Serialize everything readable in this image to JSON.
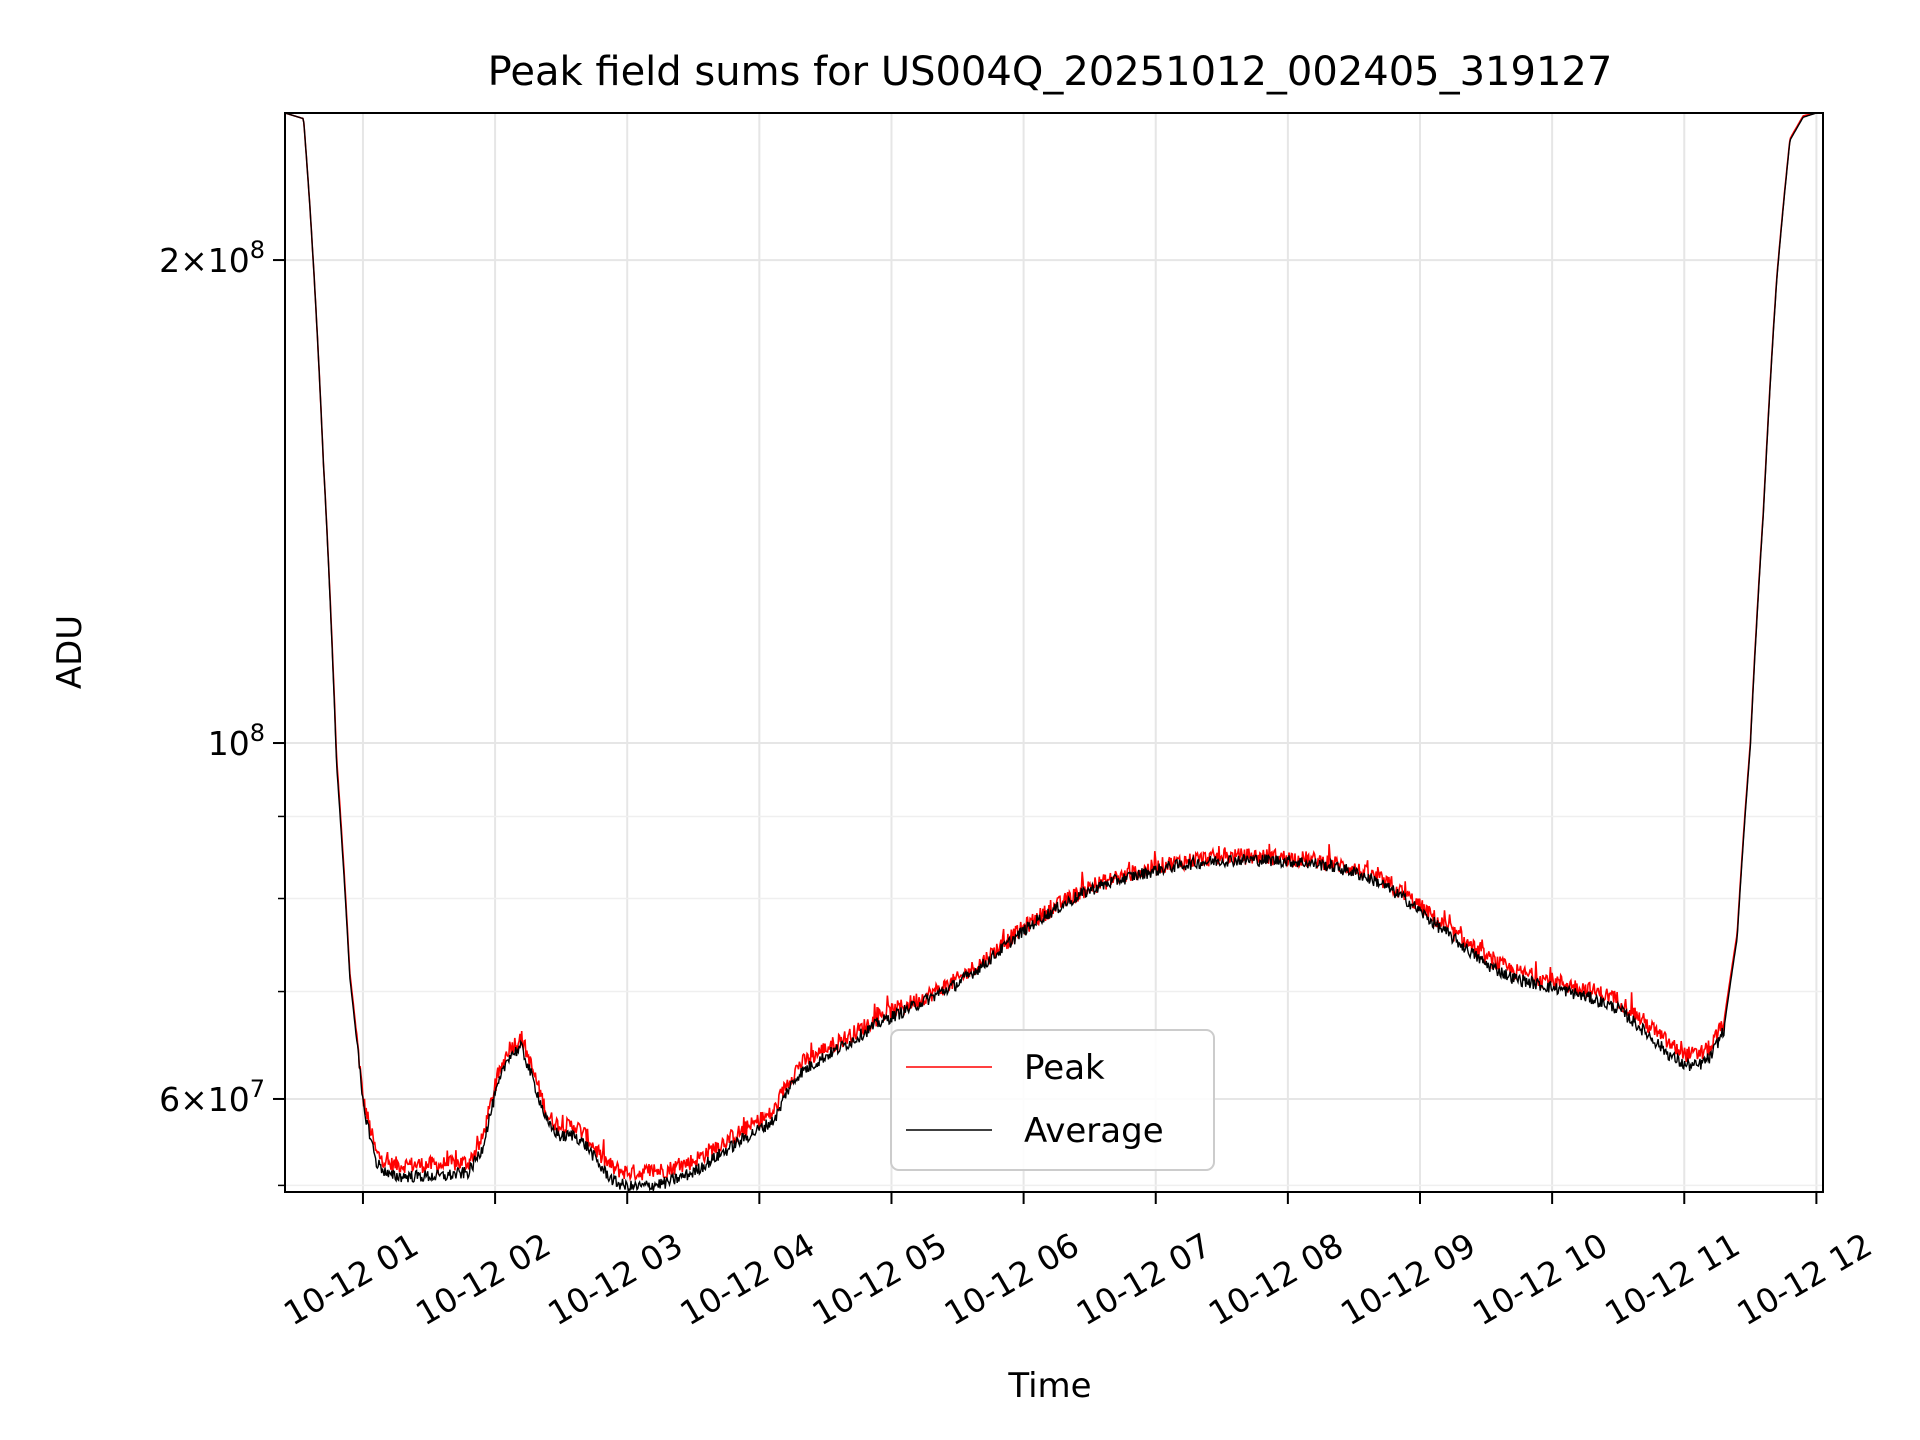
{
  "chart_data": {
    "type": "line",
    "title": "Peak field sums for US004Q_20251012_002405_319127",
    "xlabel": "Time",
    "ylabel": "ADU",
    "x_unit": "hours since 2025-10-12 00:00",
    "xlim": [
      0.41,
      12.05
    ],
    "ylim": [
      52500000,
      247000000
    ],
    "yscale": "log",
    "grid": true,
    "legend_position": "lower-center",
    "x_ticks": [
      {
        "value": 1,
        "label": "10-12 01"
      },
      {
        "value": 2,
        "label": "10-12 02"
      },
      {
        "value": 3,
        "label": "10-12 03"
      },
      {
        "value": 4,
        "label": "10-12 04"
      },
      {
        "value": 5,
        "label": "10-12 05"
      },
      {
        "value": 6,
        "label": "10-12 06"
      },
      {
        "value": 7,
        "label": "10-12 07"
      },
      {
        "value": 8,
        "label": "10-12 08"
      },
      {
        "value": 9,
        "label": "10-12 09"
      },
      {
        "value": 10,
        "label": "10-12 10"
      },
      {
        "value": 11,
        "label": "10-12 11"
      },
      {
        "value": 12,
        "label": "10-12 12"
      }
    ],
    "y_ticks": [
      {
        "value": 200000000,
        "base": "2",
        "exp": "8"
      },
      {
        "value": 100000000,
        "base": "",
        "exp": "8"
      },
      {
        "value": 60000000,
        "base": "6",
        "exp": "7"
      }
    ],
    "y_minor_ticks": [
      53000000,
      70000000,
      80000000,
      90000000
    ],
    "series": [
      {
        "name": "Peak",
        "color": "#ff0000",
        "x": [
          0.41,
          0.55,
          0.6,
          0.7,
          0.8,
          0.9,
          1.0,
          1.1,
          1.2,
          1.4,
          1.6,
          1.8,
          1.9,
          2.0,
          2.1,
          2.2,
          2.3,
          2.4,
          2.5,
          2.6,
          2.7,
          2.8,
          2.9,
          3.0,
          3.1,
          3.3,
          3.5,
          3.7,
          3.9,
          4.1,
          4.15,
          4.2,
          4.3,
          4.5,
          4.7,
          4.9,
          5.1,
          5.3,
          5.5,
          5.7,
          5.9,
          6.1,
          6.3,
          6.5,
          6.7,
          6.9,
          7.1,
          7.3,
          7.5,
          7.7,
          7.9,
          8.1,
          8.3,
          8.5,
          8.7,
          8.9,
          9.1,
          9.3,
          9.5,
          9.7,
          9.9,
          10.1,
          10.3,
          10.5,
          10.7,
          10.9,
          11.0,
          11.1,
          11.2,
          11.3,
          11.4,
          11.5,
          11.6,
          11.7,
          11.8,
          11.9,
          12.0
        ],
        "values": [
          247000000,
          245000000,
          215000000,
          150000000,
          98000000,
          72000000,
          60000000,
          55500000,
          54600000,
          54600000,
          54600000,
          54800000,
          56500000,
          61000000,
          64500000,
          65500000,
          62000000,
          58500000,
          57600000,
          57800000,
          56800000,
          55200000,
          54300000,
          54000000,
          54000000,
          54200000,
          54900000,
          56200000,
          57500000,
          58800000,
          59800000,
          61200000,
          63000000,
          64500000,
          65800000,
          67500000,
          68600000,
          69800000,
          71200000,
          73200000,
          75600000,
          77800000,
          79600000,
          81300000,
          82400000,
          83300000,
          84100000,
          84600000,
          84900000,
          85000000,
          84900000,
          84700000,
          84300000,
          83500000,
          82200000,
          80300000,
          77900000,
          75600000,
          73500000,
          72100000,
          71400000,
          70800000,
          70100000,
          69200000,
          67000000,
          64800000,
          64000000,
          63900000,
          64600000,
          67000000,
          76000000,
          100000000,
          140000000,
          195000000,
          238000000,
          246000000,
          247000000
        ]
      },
      {
        "name": "Average",
        "color": "#000000",
        "x": [
          0.41,
          0.55,
          0.6,
          0.7,
          0.8,
          0.9,
          1.0,
          1.1,
          1.2,
          1.4,
          1.6,
          1.8,
          1.9,
          2.0,
          2.1,
          2.2,
          2.3,
          2.4,
          2.5,
          2.6,
          2.7,
          2.8,
          2.9,
          3.0,
          3.1,
          3.3,
          3.5,
          3.7,
          3.9,
          4.1,
          4.15,
          4.2,
          4.3,
          4.5,
          4.7,
          4.9,
          5.1,
          5.3,
          5.5,
          5.7,
          5.9,
          6.1,
          6.3,
          6.5,
          6.7,
          6.9,
          7.1,
          7.3,
          7.5,
          7.7,
          7.9,
          8.1,
          8.3,
          8.5,
          8.7,
          8.9,
          9.1,
          9.3,
          9.5,
          9.7,
          9.9,
          10.1,
          10.3,
          10.5,
          10.7,
          10.9,
          11.0,
          11.1,
          11.2,
          11.3,
          11.4,
          11.5,
          11.6,
          11.7,
          11.8,
          11.9,
          12.0
        ],
        "values": [
          247000000,
          245000000,
          215000000,
          150000000,
          97000000,
          71500000,
          59500000,
          54800000,
          53700000,
          53700000,
          53700000,
          54000000,
          55800000,
          60300000,
          63800000,
          64600000,
          61200000,
          57800000,
          56800000,
          57000000,
          56000000,
          54400000,
          53300000,
          52900000,
          52900000,
          53200000,
          54000000,
          55400000,
          56800000,
          58100000,
          59000000,
          60500000,
          62200000,
          63800000,
          65200000,
          66900000,
          68100000,
          69400000,
          70800000,
          72800000,
          75200000,
          77500000,
          79300000,
          81000000,
          82100000,
          82900000,
          83700000,
          84200000,
          84500000,
          84600000,
          84500000,
          84300000,
          83900000,
          83100000,
          81800000,
          79800000,
          77300000,
          75000000,
          72800000,
          71400000,
          70700000,
          70100000,
          69300000,
          68300000,
          66100000,
          63800000,
          63000000,
          62900000,
          63700000,
          66300000,
          75500000,
          99500000,
          139500000,
          194500000,
          237500000,
          245500000,
          247000000
        ]
      }
    ]
  }
}
